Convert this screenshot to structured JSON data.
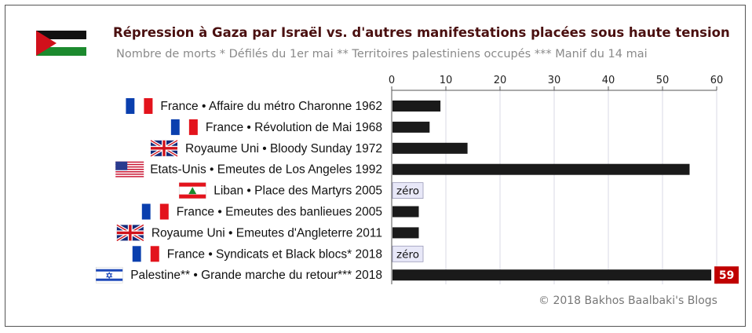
{
  "title": "Répression à Gaza par Israël vs. d'autres manifestations placées sous haute tension",
  "subtitle": "Nombre de morts * Défilés du 1er mai ** Territoires palestiniens occupés *** Manif du 14 mai",
  "credit": "© 2018 Bakhos Baalbaki's Blogs",
  "colors": {
    "bar": "#1a1a1a",
    "zero_fill": "#e8e8f8",
    "highlight": "#c00000",
    "title": "#4a1010",
    "grid": "#d8d8e4"
  },
  "chart_data": {
    "type": "bar",
    "orientation": "horizontal",
    "axis_position": "top",
    "xlim": [
      0,
      60
    ],
    "xticks": [
      0,
      10,
      20,
      30,
      40,
      50,
      60
    ],
    "grid": true,
    "zero_label": "zéro",
    "highlight_label": "59",
    "categories": [
      {
        "label": "France • Affaire du métro Charonne 1962",
        "flag": "france-flag",
        "value": 9
      },
      {
        "label": "France • Révolution de Mai 1968",
        "flag": "france-flag",
        "value": 7
      },
      {
        "label": "Royaume Uni • Bloody Sunday 1972",
        "flag": "uk-flag",
        "value": 14
      },
      {
        "label": "Etats-Unis • Emeutes de Los Angeles 1992",
        "flag": "usa-flag",
        "value": 55
      },
      {
        "label": "Liban • Place des Martyrs 2005",
        "flag": "lebanon-flag",
        "value": 0
      },
      {
        "label": "France • Emeutes des banlieues 2005",
        "flag": "france-flag",
        "value": 5
      },
      {
        "label": "Royaume Uni • Emeutes d'Angleterre 2011",
        "flag": "uk-flag",
        "value": 5
      },
      {
        "label": "France • Syndicats et Black blocs* 2018",
        "flag": "france-flag",
        "value": 0
      },
      {
        "label": "Palestine** • Grande marche du retour*** 2018",
        "flag": "israel-flag",
        "value": 59
      }
    ]
  }
}
